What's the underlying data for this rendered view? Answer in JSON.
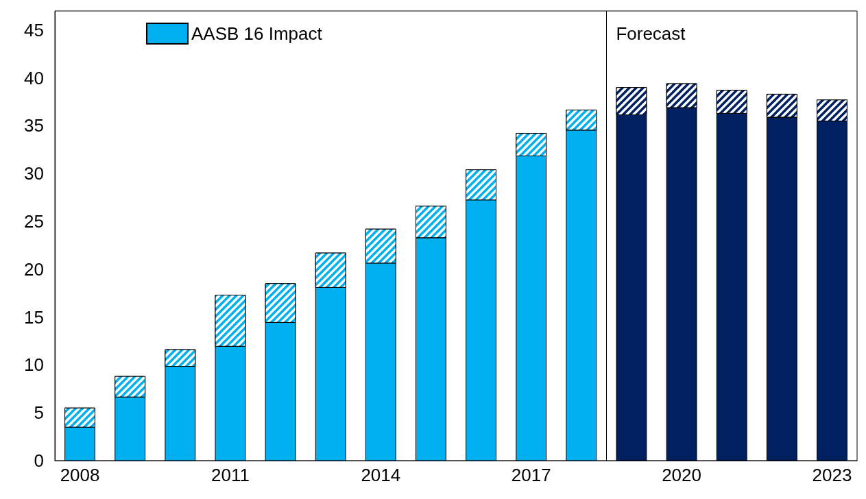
{
  "chart_data": {
    "type": "bar",
    "stacked": true,
    "x": [
      2008,
      2009,
      2010,
      2011,
      2012,
      2013,
      2014,
      2015,
      2016,
      2017,
      2018,
      2019,
      2020,
      2021,
      2022,
      2023
    ],
    "series": [
      {
        "colors": [
          "#00b0f0",
          "#00b0f0",
          "#00b0f0",
          "#00b0f0",
          "#00b0f0",
          "#00b0f0",
          "#00b0f0",
          "#00b0f0",
          "#00b0f0",
          "#00b0f0",
          "#00b0f0",
          "#002060",
          "#002060",
          "#002060",
          "#002060",
          "#002060"
        ],
        "values": [
          3.5,
          6.65,
          9.85,
          11.95,
          14.45,
          18.1,
          20.65,
          23.3,
          27.25,
          31.85,
          34.55,
          36.15,
          36.9,
          36.3,
          35.9,
          35.5
        ]
      },
      {
        "name": "AASB 16 Impact",
        "colors": [
          "#00b0f0",
          "#00b0f0",
          "#00b0f0",
          "#00b0f0",
          "#00b0f0",
          "#00b0f0",
          "#00b0f0",
          "#00b0f0",
          "#00b0f0",
          "#00b0f0",
          "#00b0f0",
          "#002060",
          "#002060",
          "#002060",
          "#002060",
          "#002060"
        ],
        "values": [
          2.0,
          2.15,
          1.75,
          5.35,
          4.05,
          3.6,
          3.55,
          3.3,
          3.15,
          2.35,
          2.1,
          2.85,
          2.5,
          2.4,
          2.4,
          2.2
        ]
      }
    ],
    "xlim": [
      2007.5,
      2023.5
    ],
    "xticks": [
      2008,
      2011,
      2014,
      2017,
      2020,
      2023
    ],
    "ylim": [
      0,
      47
    ],
    "yticks": [
      0,
      5,
      10,
      15,
      20,
      25,
      30,
      35,
      40,
      45
    ],
    "ref_lines": [
      {
        "axis": "x",
        "value": 2018.5,
        "label": "Forecast",
        "color": "#000000"
      }
    ],
    "grid": false,
    "legend": "top left"
  }
}
